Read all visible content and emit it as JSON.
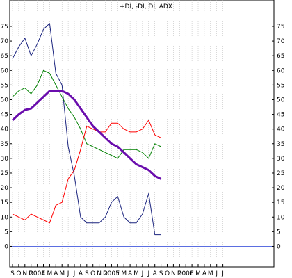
{
  "chart_data": {
    "type": "line",
    "title": "+DI, -DI, DI, ADX",
    "xlabel": "",
    "ylabel": "",
    "ylim": [
      -7,
      84
    ],
    "grid": true,
    "legend": "none",
    "x_labels": [
      "S",
      "O",
      "N",
      "D",
      "2004",
      "F",
      "M",
      "A",
      "M",
      "J",
      "J",
      "A",
      "S",
      "O",
      "N",
      "D",
      "2005",
      "F",
      "M",
      "A",
      "M",
      "J",
      "J",
      "A",
      "S",
      "O",
      "N",
      "D",
      "2006",
      "F",
      "M",
      "A",
      "M",
      "J",
      "J"
    ],
    "y_ticks": [
      0,
      5,
      10,
      15,
      20,
      25,
      30,
      35,
      40,
      45,
      50,
      55,
      60,
      65,
      70,
      75
    ],
    "series": [
      {
        "color": "#1a237e",
        "width": 1,
        "values": [
          64,
          68,
          71,
          65,
          69,
          74,
          76,
          59,
          55,
          34,
          24,
          10,
          8,
          8,
          8,
          10,
          15,
          17,
          10,
          8,
          8,
          11,
          18,
          4,
          4
        ]
      },
      {
        "color": "#008000",
        "width": 1,
        "values": [
          51,
          53,
          54,
          52,
          55,
          60,
          59,
          55,
          51,
          47,
          44,
          40,
          35,
          34,
          33,
          32,
          31,
          30,
          33,
          33,
          33,
          32,
          30,
          35,
          34
        ]
      },
      {
        "color": "#ff0000",
        "width": 1,
        "values": [
          11,
          10,
          9,
          11,
          10,
          9,
          8,
          14,
          15,
          23,
          26,
          33,
          41,
          40,
          39,
          39,
          42,
          42,
          40,
          39,
          39,
          40,
          43,
          38,
          37
        ]
      },
      {
        "color": "#6a0dad",
        "width": 3,
        "values": [
          43,
          45,
          46.5,
          47,
          49,
          51,
          53,
          53,
          53,
          52,
          50,
          47,
          44,
          41,
          39,
          37,
          35,
          34,
          32,
          30,
          28,
          27,
          26,
          24,
          23
        ]
      }
    ],
    "zero_line_color": "#5b6ee1"
  }
}
